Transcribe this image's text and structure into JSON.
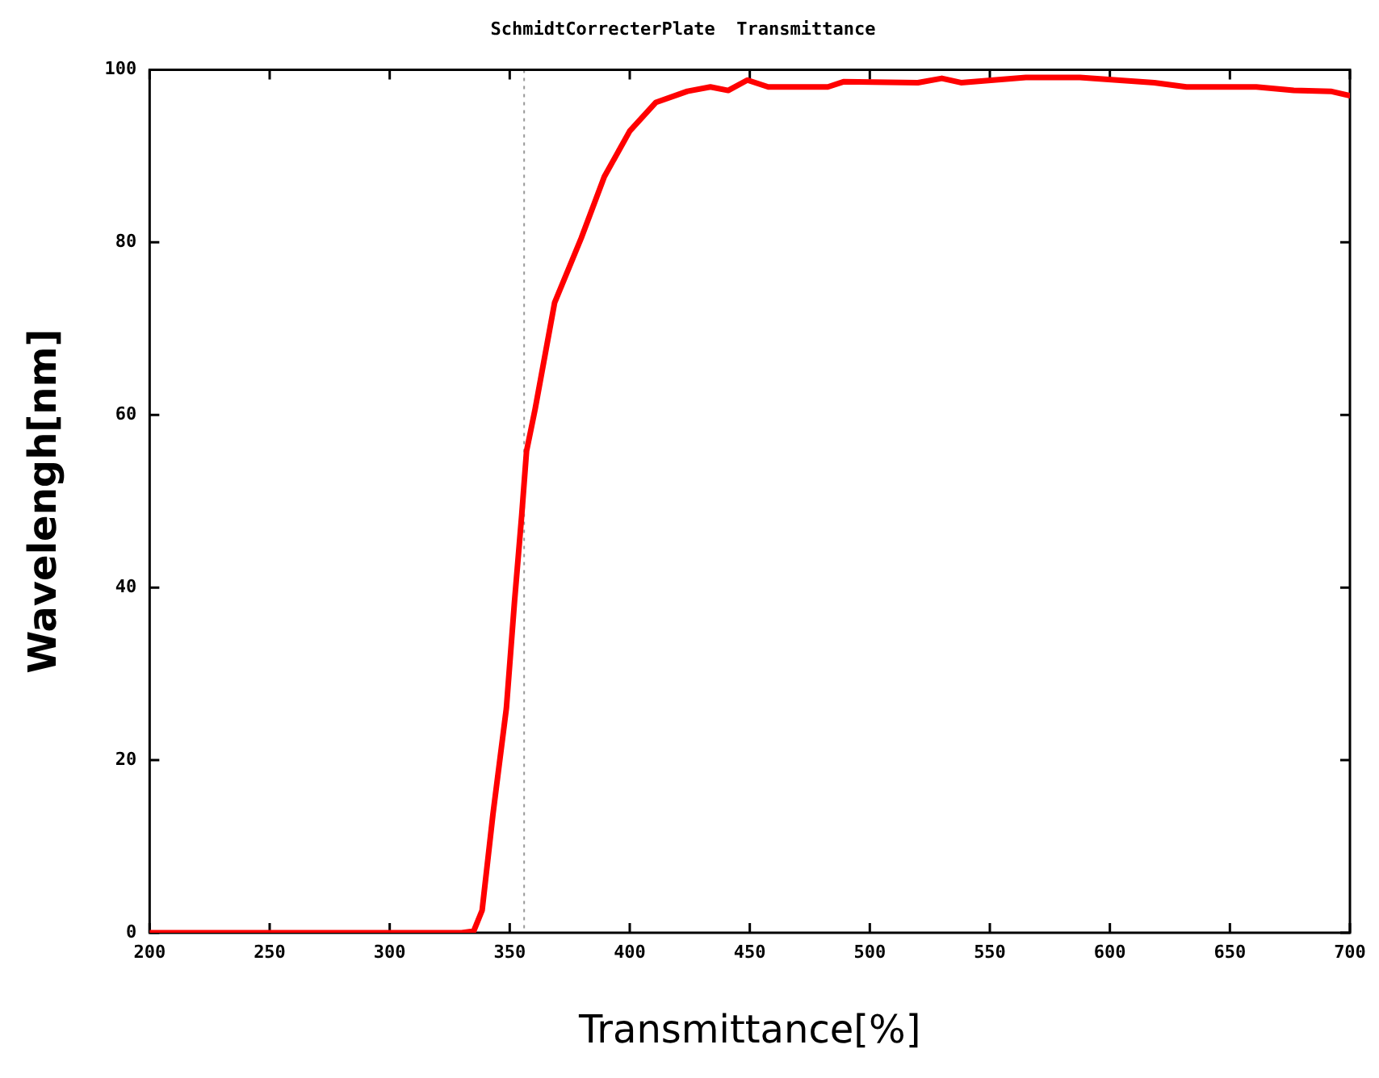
{
  "chart_data": {
    "type": "line",
    "title": "SchmidtCorrecterPlate  Transmittance",
    "xlabel": "Transmittance[%]",
    "ylabel": "Wavelengh[nm]",
    "xlim": [
      200,
      700
    ],
    "xticks": [
      200,
      250,
      300,
      350,
      400,
      450,
      500,
      550,
      600,
      650,
      700
    ],
    "ylim": [
      0,
      100
    ],
    "yticks": [
      0,
      20,
      40,
      60,
      80,
      100
    ],
    "grid": false,
    "legend": false,
    "marker": "none",
    "line_style": "solid",
    "ref_lines": [
      {
        "axis": "x",
        "value": 356,
        "color": "#999999",
        "line_style": "dotted"
      }
    ],
    "series": [
      {
        "color": "#ff0000",
        "x": [
          200,
          250,
          300,
          330,
          335,
          338.5,
          343,
          348.6,
          352,
          355,
          357,
          360.6,
          368.7,
          379.8,
          389.4,
          400,
          410.8,
          424,
          433.6,
          441,
          449,
          457.7,
          482.5,
          489,
          520,
          530,
          538,
          565,
          587.5,
          618.5,
          631.9,
          661,
          676.6,
          692,
          700
        ],
        "values": [
          0,
          0,
          0,
          0,
          0.2,
          2.6,
          13.7,
          26,
          38.4,
          48.4,
          55.8,
          60.7,
          73,
          80.5,
          87.6,
          92.9,
          96.2,
          97.5,
          98,
          97.6,
          98.8,
          98,
          98,
          98.6,
          98.5,
          99,
          98.5,
          99.1,
          99.1,
          98.5,
          98,
          98,
          97.6,
          97.5,
          97
        ]
      }
    ]
  }
}
